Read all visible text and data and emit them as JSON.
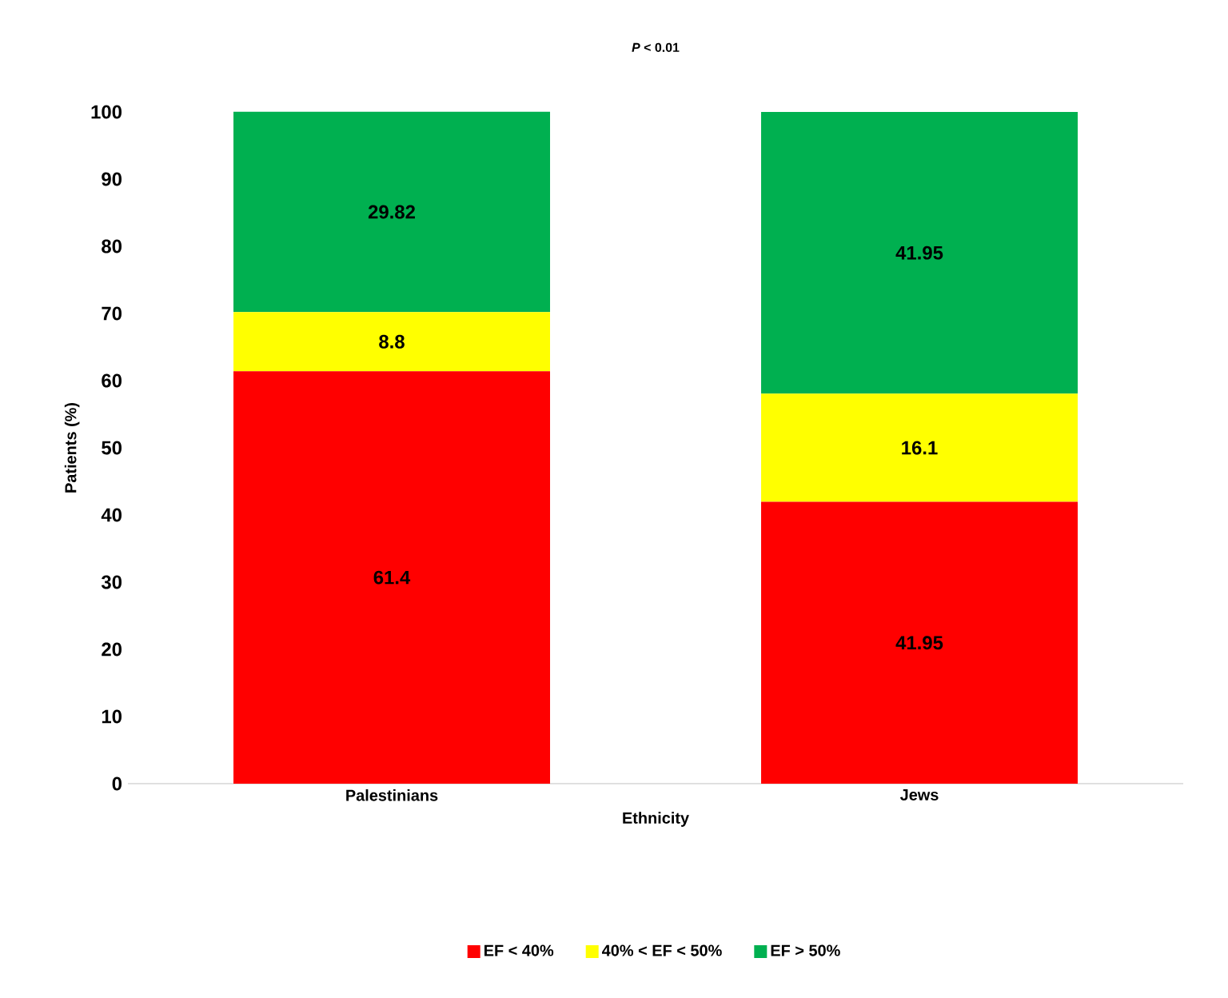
{
  "chart_data": {
    "type": "bar",
    "stacked": true,
    "title": "*P* < 0.01",
    "xlabel": "Ethnicity",
    "ylabel": "Patients (%)",
    "categories": [
      "Palestinians",
      "Jews"
    ],
    "series": [
      {
        "name": "EF < 40%",
        "color": "#ff0000",
        "values": [
          61.4,
          41.95
        ]
      },
      {
        "name": "40% < EF < 50%",
        "color": "#ffff00",
        "values": [
          8.8,
          16.1
        ]
      },
      {
        "name": "EF > 50%",
        "color": "#00b050",
        "values": [
          29.82,
          41.95
        ]
      }
    ],
    "ylim": [
      0,
      100
    ],
    "yticks": [
      0,
      10,
      20,
      30,
      40,
      50,
      60,
      70,
      80,
      90,
      100
    ],
    "grid": false,
    "legend": "bottom",
    "data_labels": true
  }
}
